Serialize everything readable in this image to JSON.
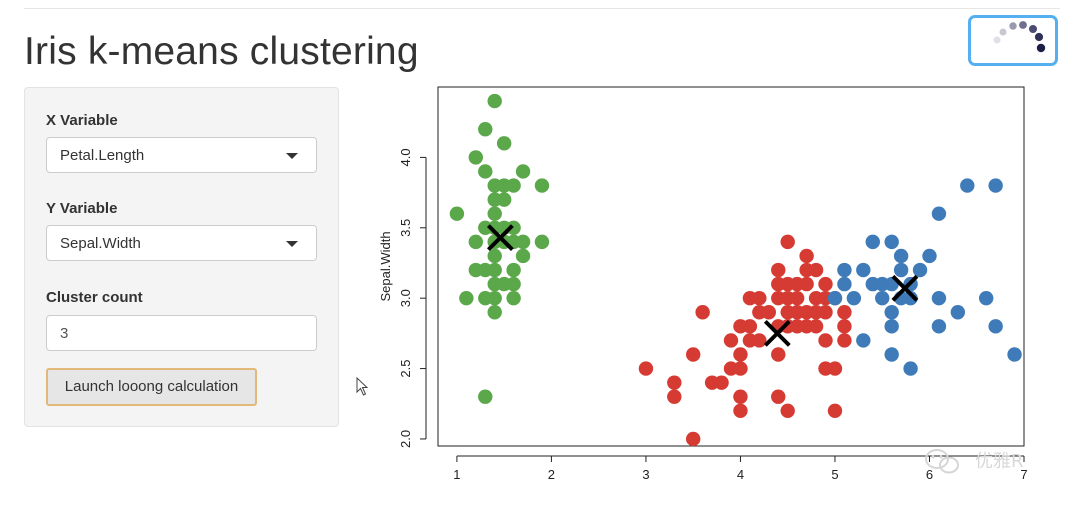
{
  "page": {
    "title": "Iris k-means clustering"
  },
  "sidebar": {
    "x_label": "X Variable",
    "x_value": "Petal.Length",
    "y_label": "Y Variable",
    "y_value": "Sepal.Width",
    "cluster_label": "Cluster count",
    "cluster_value": "3",
    "launch_label": "Launch looong calculation"
  },
  "watermark": {
    "text": "优雅R"
  },
  "icons": {
    "spinner": "loading-spinner-icon",
    "cursor": "mouse-pointer-icon",
    "watermark": "wechat-icon"
  },
  "chart_data": {
    "type": "scatter",
    "title": "",
    "xlabel": "",
    "ylabel": "Sepal.Width",
    "xlim": [
      0.8,
      7.0
    ],
    "ylim": [
      1.95,
      4.5
    ],
    "xticks": [
      "1",
      "2",
      "3",
      "4",
      "5",
      "6",
      "7"
    ],
    "yticks": [
      "2.0",
      "2.5",
      "3.0",
      "3.5",
      "4.0"
    ],
    "colors": {
      "green": "#5aa84a",
      "red": "#d63b33",
      "blue": "#3f7bb8",
      "center": "#000000"
    },
    "series": [
      {
        "color": "green",
        "points": [
          [
            1.4,
            4.4
          ],
          [
            1.3,
            4.2
          ],
          [
            1.5,
            4.1
          ],
          [
            1.2,
            4.0
          ],
          [
            1.7,
            3.9
          ],
          [
            1.3,
            3.9
          ],
          [
            1.4,
            3.8
          ],
          [
            1.5,
            3.8
          ],
          [
            1.6,
            3.8
          ],
          [
            1.9,
            3.8
          ],
          [
            1.4,
            3.7
          ],
          [
            1.5,
            3.7
          ],
          [
            1.0,
            3.6
          ],
          [
            1.4,
            3.6
          ],
          [
            1.3,
            3.5
          ],
          [
            1.4,
            3.5
          ],
          [
            1.5,
            3.5
          ],
          [
            1.6,
            3.5
          ],
          [
            1.2,
            3.4
          ],
          [
            1.4,
            3.4
          ],
          [
            1.5,
            3.4
          ],
          [
            1.6,
            3.4
          ],
          [
            1.7,
            3.4
          ],
          [
            1.9,
            3.4
          ],
          [
            1.4,
            3.3
          ],
          [
            1.7,
            3.3
          ],
          [
            1.2,
            3.2
          ],
          [
            1.3,
            3.2
          ],
          [
            1.4,
            3.2
          ],
          [
            1.6,
            3.2
          ],
          [
            1.5,
            3.1
          ],
          [
            1.4,
            3.1
          ],
          [
            1.6,
            3.1
          ],
          [
            1.1,
            3.0
          ],
          [
            1.3,
            3.0
          ],
          [
            1.4,
            3.0
          ],
          [
            1.6,
            3.0
          ],
          [
            1.4,
            2.9
          ],
          [
            1.3,
            2.3
          ]
        ]
      },
      {
        "color": "red",
        "points": [
          [
            4.5,
            3.4
          ],
          [
            4.7,
            3.3
          ],
          [
            4.4,
            3.2
          ],
          [
            4.7,
            3.2
          ],
          [
            4.8,
            3.2
          ],
          [
            4.4,
            3.1
          ],
          [
            4.5,
            3.1
          ],
          [
            4.6,
            3.1
          ],
          [
            4.7,
            3.1
          ],
          [
            4.9,
            3.1
          ],
          [
            4.1,
            3.0
          ],
          [
            4.2,
            3.0
          ],
          [
            4.4,
            3.0
          ],
          [
            4.5,
            3.0
          ],
          [
            4.6,
            3.0
          ],
          [
            4.8,
            3.0
          ],
          [
            4.9,
            3.0
          ],
          [
            5.0,
            3.0
          ],
          [
            3.6,
            2.9
          ],
          [
            4.2,
            2.9
          ],
          [
            4.3,
            2.9
          ],
          [
            4.5,
            2.9
          ],
          [
            4.6,
            2.9
          ],
          [
            4.7,
            2.9
          ],
          [
            4.8,
            2.9
          ],
          [
            4.9,
            2.9
          ],
          [
            5.1,
            2.9
          ],
          [
            4.0,
            2.8
          ],
          [
            4.1,
            2.8
          ],
          [
            4.4,
            2.8
          ],
          [
            4.5,
            2.8
          ],
          [
            4.6,
            2.8
          ],
          [
            4.7,
            2.8
          ],
          [
            4.8,
            2.8
          ],
          [
            5.1,
            2.8
          ],
          [
            3.9,
            2.7
          ],
          [
            4.1,
            2.7
          ],
          [
            4.2,
            2.7
          ],
          [
            4.9,
            2.7
          ],
          [
            5.1,
            2.7
          ],
          [
            3.5,
            2.6
          ],
          [
            4.0,
            2.6
          ],
          [
            4.4,
            2.6
          ],
          [
            5.0,
            2.5
          ],
          [
            3.9,
            2.5
          ],
          [
            4.0,
            2.5
          ],
          [
            4.9,
            2.5
          ],
          [
            3.0,
            2.5
          ],
          [
            3.7,
            2.4
          ],
          [
            3.8,
            2.4
          ],
          [
            3.3,
            2.4
          ],
          [
            3.3,
            2.3
          ],
          [
            4.0,
            2.3
          ],
          [
            4.4,
            2.3
          ],
          [
            4.5,
            2.2
          ],
          [
            4.0,
            2.2
          ],
          [
            5.0,
            2.2
          ],
          [
            3.5,
            2.0
          ]
        ]
      },
      {
        "color": "blue",
        "points": [
          [
            6.4,
            3.8
          ],
          [
            6.7,
            3.8
          ],
          [
            6.1,
            3.6
          ],
          [
            5.6,
            3.4
          ],
          [
            5.4,
            3.4
          ],
          [
            5.7,
            3.3
          ],
          [
            6.0,
            3.3
          ],
          [
            5.1,
            3.2
          ],
          [
            5.3,
            3.2
          ],
          [
            5.7,
            3.2
          ],
          [
            5.9,
            3.2
          ],
          [
            5.1,
            3.1
          ],
          [
            5.4,
            3.1
          ],
          [
            5.5,
            3.1
          ],
          [
            5.6,
            3.1
          ],
          [
            5.8,
            3.1
          ],
          [
            5.0,
            3.0
          ],
          [
            5.2,
            3.0
          ],
          [
            5.5,
            3.0
          ],
          [
            5.7,
            3.0
          ],
          [
            5.8,
            3.0
          ],
          [
            6.1,
            3.0
          ],
          [
            6.6,
            3.0
          ],
          [
            5.6,
            2.9
          ],
          [
            6.3,
            2.9
          ],
          [
            5.6,
            2.8
          ],
          [
            6.1,
            2.8
          ],
          [
            6.7,
            2.8
          ],
          [
            5.3,
            2.7
          ],
          [
            5.6,
            2.6
          ],
          [
            6.9,
            2.6
          ],
          [
            5.8,
            2.5
          ]
        ]
      }
    ],
    "centers": [
      [
        1.46,
        3.43
      ],
      [
        4.39,
        2.75
      ],
      [
        5.74,
        3.07
      ]
    ]
  }
}
